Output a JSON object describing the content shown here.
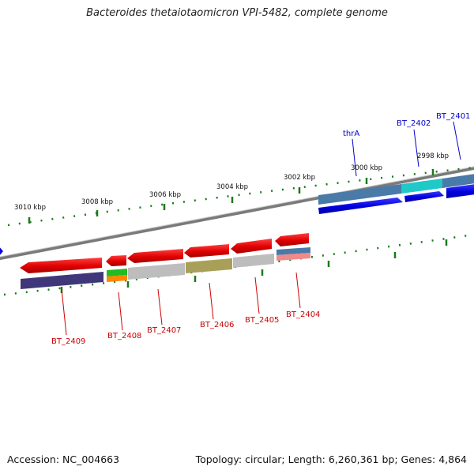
{
  "title": "Bacteroides thetaiotaomicron VPI-5482, complete genome",
  "footer": {
    "accession": "Accession: NC_004663",
    "summary": "Topology: circular; Length: 6,260,361 bp; Genes: 4,864"
  },
  "scale_labels": [
    "3010 kbp",
    "3008 kbp",
    "3006 kbp",
    "3004 kbp",
    "3002 kbp",
    "3000 kbp",
    "2998 kbp"
  ],
  "genes_top": [
    {
      "name": "thrA",
      "color": "#0000cc"
    },
    {
      "name": "BT_2402",
      "color": "#0000cc"
    },
    {
      "name": "BT_2401",
      "color": "#0000cc"
    }
  ],
  "genes_bottom": [
    {
      "name": "BT_2409",
      "color": "#cc0000"
    },
    {
      "name": "BT_2408",
      "color": "#cc0000"
    },
    {
      "name": "BT_2407",
      "color": "#cc0000"
    },
    {
      "name": "BT_2406",
      "color": "#cc0000"
    },
    {
      "name": "BT_2405",
      "color": "#cc0000"
    },
    {
      "name": "BT_2404",
      "color": "#cc0000"
    }
  ],
  "colors": {
    "forward_cds": "#0000ee",
    "reverse_cds": "#ee0000",
    "backbone": "#808080",
    "ticks": "#1a7a1a"
  }
}
